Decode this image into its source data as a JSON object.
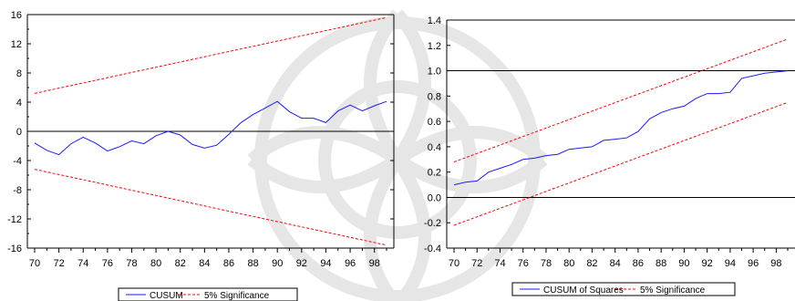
{
  "colors": {
    "series_line": "#1a1aff",
    "significance_line": "#ff0000",
    "axis": "#000000",
    "zero_line": "#000000"
  },
  "chart_data": [
    {
      "type": "line",
      "title": "",
      "xlabel": "",
      "ylabel": "",
      "xlim": [
        70,
        99
      ],
      "ylim": [
        -16,
        16
      ],
      "x_tick_labels": [
        "70",
        "72",
        "74",
        "76",
        "78",
        "80",
        "82",
        "84",
        "86",
        "88",
        "90",
        "92",
        "94",
        "96",
        "98"
      ],
      "y_tick_labels": [
        "16",
        "12",
        "8",
        "4",
        "0",
        "-4",
        "-8",
        "-12",
        "-16"
      ],
      "y_tick_values": [
        16,
        12,
        8,
        4,
        0,
        -4,
        -8,
        -12,
        -16
      ],
      "reference_line": 0,
      "grid": false,
      "legend_position": "bottom-center",
      "x": [
        70,
        71,
        72,
        73,
        74,
        75,
        76,
        77,
        78,
        79,
        80,
        81,
        82,
        83,
        84,
        85,
        86,
        87,
        88,
        89,
        90,
        91,
        92,
        93,
        94,
        95,
        96,
        97,
        98,
        99
      ],
      "series": [
        {
          "name": "CUSUM",
          "style": "solid",
          "values": [
            -1.6,
            -2.6,
            -3.2,
            -1.7,
            -0.8,
            -1.6,
            -2.7,
            -2.1,
            -1.3,
            -1.7,
            -0.6,
            0.0,
            -0.5,
            -1.8,
            -2.3,
            -1.9,
            -0.4,
            1.2,
            2.3,
            3.2,
            4.1,
            2.7,
            1.8,
            1.8,
            1.2,
            2.8,
            3.6,
            2.8,
            3.5,
            4.1
          ]
        },
        {
          "name": "5% Significance",
          "style": "dashed",
          "upper": [
            5.2,
            15.6
          ],
          "lower": [
            -5.2,
            -15.6
          ]
        }
      ],
      "legend": [
        "CUSUM",
        "5% Significance"
      ]
    },
    {
      "type": "line",
      "title": "",
      "xlabel": "",
      "ylabel": "",
      "xlim": [
        70,
        99
      ],
      "ylim": [
        -0.4,
        1.4
      ],
      "x_tick_labels": [
        "70",
        "72",
        "74",
        "76",
        "78",
        "80",
        "82",
        "84",
        "86",
        "88",
        "90",
        "92",
        "94",
        "96",
        "98"
      ],
      "y_tick_labels": [
        "1.4",
        "1.2",
        "1.0",
        "0.8",
        "0.6",
        "0.4",
        "0.2",
        "0.0",
        "-0.2",
        "-0.4"
      ],
      "y_tick_values": [
        1.4,
        1.2,
        1.0,
        0.8,
        0.6,
        0.4,
        0.2,
        0.0,
        -0.2,
        -0.4
      ],
      "reference_lines": [
        0,
        1
      ],
      "grid": false,
      "legend_position": "bottom-center",
      "x": [
        70,
        71,
        72,
        73,
        74,
        75,
        76,
        77,
        78,
        79,
        80,
        81,
        82,
        83,
        84,
        85,
        86,
        87,
        88,
        89,
        90,
        91,
        92,
        93,
        94,
        95,
        96,
        97,
        98,
        99
      ],
      "series": [
        {
          "name": "CUSUM of Squares",
          "style": "solid",
          "values": [
            0.1,
            0.12,
            0.13,
            0.2,
            0.23,
            0.26,
            0.3,
            0.31,
            0.33,
            0.34,
            0.38,
            0.39,
            0.4,
            0.45,
            0.46,
            0.47,
            0.52,
            0.62,
            0.67,
            0.7,
            0.72,
            0.78,
            0.82,
            0.82,
            0.83,
            0.94,
            0.96,
            0.98,
            0.99,
            1.0
          ]
        },
        {
          "name": "5% Significance",
          "style": "dashed",
          "upper": [
            0.28,
            1.25
          ],
          "lower": [
            -0.22,
            0.75
          ]
        }
      ],
      "legend": [
        "CUSUM of Squares",
        "5% Significance"
      ]
    }
  ]
}
